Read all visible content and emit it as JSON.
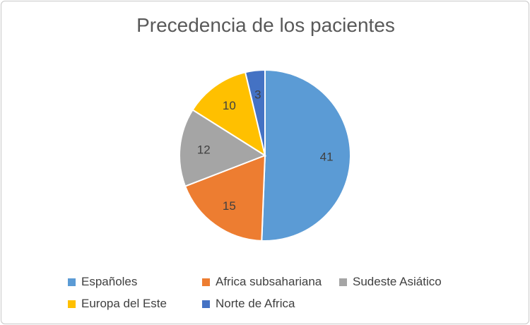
{
  "chart_data": {
    "type": "pie",
    "title": "Precedencia de los pacientes",
    "categories": [
      "Españoles",
      "Africa subsahariana",
      "Sudeste Asiático",
      "Europa del Este",
      "Norte de Africa"
    ],
    "values": [
      41,
      15,
      12,
      10,
      3
    ],
    "colors": [
      "#5b9bd5",
      "#ed7d31",
      "#a5a5a5",
      "#ffc000",
      "#4472c4"
    ],
    "start_angle": "top",
    "direction": "clockwise",
    "data_labels": true,
    "legend": "bottom"
  }
}
